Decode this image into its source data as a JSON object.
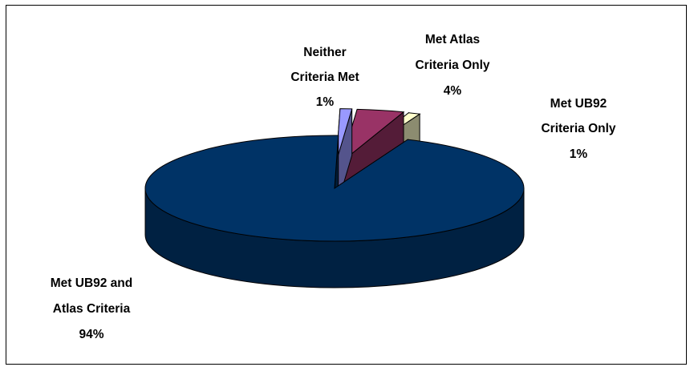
{
  "chart_data": {
    "type": "pie",
    "style": "3d-exploded",
    "title": "",
    "legend": "none",
    "slices": [
      {
        "label_lines": [
          "Met UB92 and",
          "Atlas Criteria",
          "94%"
        ],
        "value": 94,
        "color": "#003366",
        "exploded": false
      },
      {
        "label_lines": [
          "Neither",
          "Criteria Met",
          "1%"
        ],
        "value": 1,
        "color": "#9999FF",
        "exploded": true
      },
      {
        "label_lines": [
          "Met Atlas",
          "Criteria Only",
          "4%"
        ],
        "value": 4,
        "color": "#993366",
        "exploded": true
      },
      {
        "label_lines": [
          "Met UB92",
          "Criteria Only",
          "1%"
        ],
        "value": 1,
        "color": "#FFFFCC",
        "exploded": true
      }
    ]
  }
}
